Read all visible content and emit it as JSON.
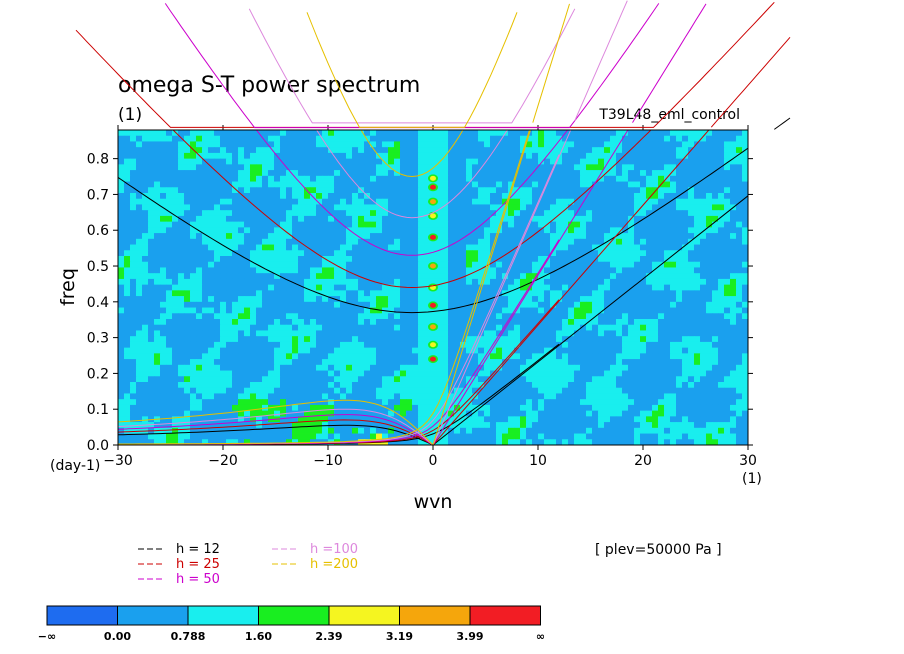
{
  "chart_data": {
    "type": "heatmap",
    "title": "omega S-T power spectrum",
    "title_unit": "(1)",
    "run_label": "T39L48_eml_control",
    "xlabel": "wvn",
    "ylabel": "freq",
    "x_unit": "(1)",
    "y_unit": "(day-1)",
    "xlim": [
      -30,
      30
    ],
    "ylim": [
      0,
      0.88
    ],
    "x_ticks": [
      -30,
      -20,
      -10,
      0,
      10,
      20,
      30
    ],
    "x_tick_labels": [
      "−30",
      "−20",
      "−10",
      "0",
      "10",
      "20",
      "30"
    ],
    "y_ticks": [
      0,
      0.1,
      0.2,
      0.3,
      0.4,
      0.5,
      0.6,
      0.7,
      0.8
    ],
    "y_tick_labels": [
      "0.0",
      "0.1",
      "0.2",
      "0.3",
      "0.4",
      "0.5",
      "0.6",
      "0.7",
      "0.8"
    ],
    "plev_label": "[ plev=50000 Pa ]",
    "colorbar": {
      "labels": [
        "−∞",
        "0.00",
        "0.788",
        "1.60",
        "2.39",
        "3.19",
        "3.99",
        "∞"
      ],
      "colors": [
        "#1e6cf0",
        "#1aa0ee",
        "#19eeee",
        "#19ee20",
        "#f5f520",
        "#f5a60c",
        "#f21d24"
      ]
    },
    "dominant_level_color": "#19eeee",
    "background_level_color": "#1aa0ee",
    "equatorial_ridge": {
      "x": 0,
      "peak_freqs": [
        0.24,
        0.28,
        0.33,
        0.39,
        0.44,
        0.5,
        0.58,
        0.64,
        0.68,
        0.72,
        0.745
      ]
    },
    "dispersion_curves": [
      {
        "label": "h = 12",
        "h": 12,
        "color": "#000000",
        "eq_freq": 0.37
      },
      {
        "label": "h = 25",
        "h": 25,
        "color": "#cc0000",
        "eq_freq": 0.44
      },
      {
        "label": "h = 50",
        "h": 50,
        "color": "#cc00cc",
        "eq_freq": 0.53
      },
      {
        "label": "h =100",
        "h": 100,
        "color": "#dd88dd",
        "eq_freq": 0.635
      },
      {
        "label": "h =200",
        "h": 200,
        "color": "#e6c000",
        "eq_freq": 0.75
      }
    ],
    "kelvin_slopes": [
      {
        "h": 12,
        "slope": 0.0232
      },
      {
        "h": 25,
        "slope": 0.0335
      },
      {
        "h": 50,
        "slope": 0.0474
      },
      {
        "h": 100,
        "slope": 0.0671
      },
      {
        "h": 200,
        "slope": 0.0948
      }
    ],
    "rossby_peaks": [
      {
        "h": 12,
        "freq": 0.055
      },
      {
        "h": 25,
        "freq": 0.07
      },
      {
        "h": 50,
        "freq": 0.085
      },
      {
        "h": 100,
        "freq": 0.1
      },
      {
        "h": 200,
        "freq": 0.125
      }
    ]
  }
}
